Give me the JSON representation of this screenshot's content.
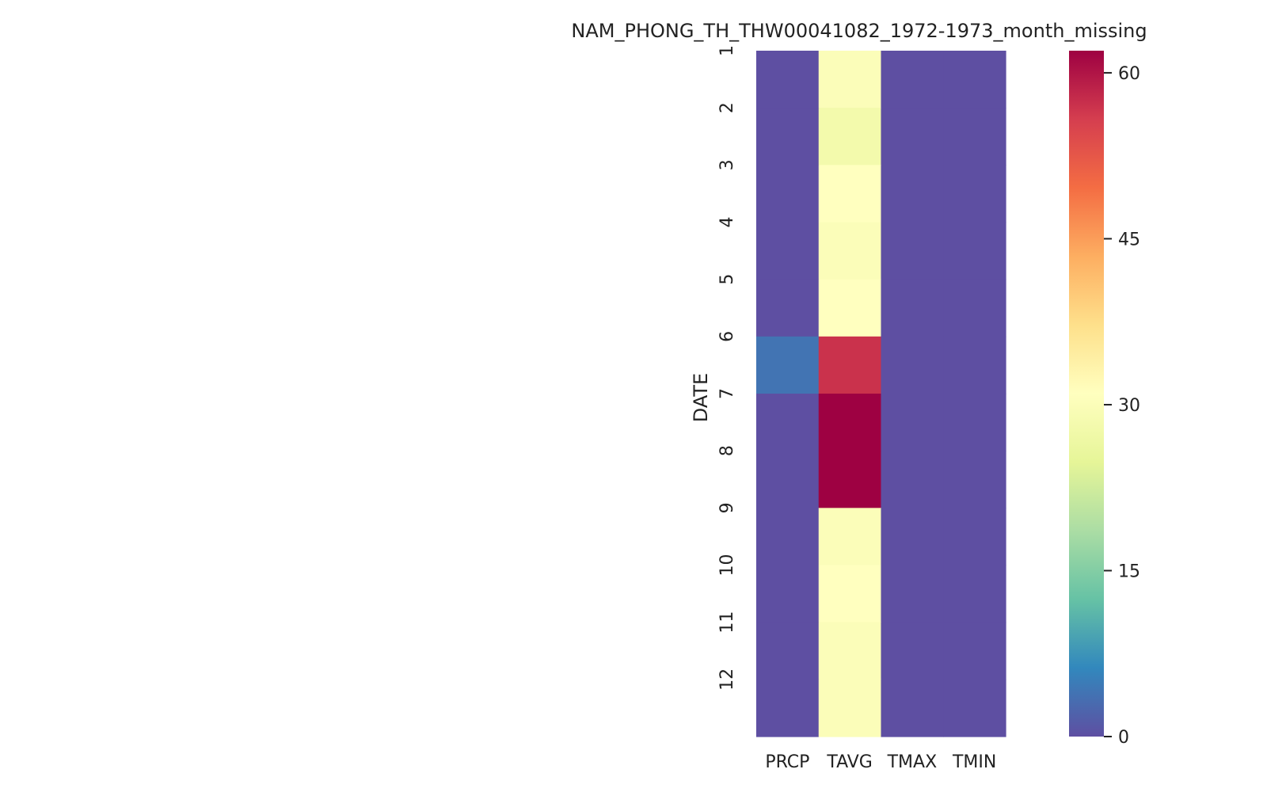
{
  "chart_data": {
    "type": "heatmap",
    "title": "NAM_PHONG_TH_THW00041082_1972-1973_month_missing",
    "xlabel": "",
    "ylabel": "DATE",
    "columns": [
      "PRCP",
      "TAVG",
      "TMAX",
      "TMIN"
    ],
    "rows": [
      "1",
      "2",
      "3",
      "4",
      "5",
      "6",
      "7",
      "8",
      "9",
      "10",
      "11",
      "12"
    ],
    "values": [
      [
        0,
        30,
        0,
        0
      ],
      [
        0,
        28,
        0,
        0
      ],
      [
        0,
        31,
        0,
        0
      ],
      [
        0,
        30,
        0,
        0
      ],
      [
        0,
        31,
        0,
        0
      ],
      [
        4,
        57,
        0,
        0
      ],
      [
        0,
        62,
        0,
        0
      ],
      [
        0,
        62,
        0,
        0
      ],
      [
        0,
        30,
        0,
        0
      ],
      [
        0,
        31,
        0,
        0
      ],
      [
        0,
        30,
        0,
        0
      ],
      [
        0,
        30,
        0,
        0
      ]
    ],
    "colorbar": {
      "min": 0,
      "max": 62,
      "ticks": [
        0,
        15,
        30,
        45,
        60
      ],
      "colormap": "Spectral_r"
    },
    "grid": false
  }
}
